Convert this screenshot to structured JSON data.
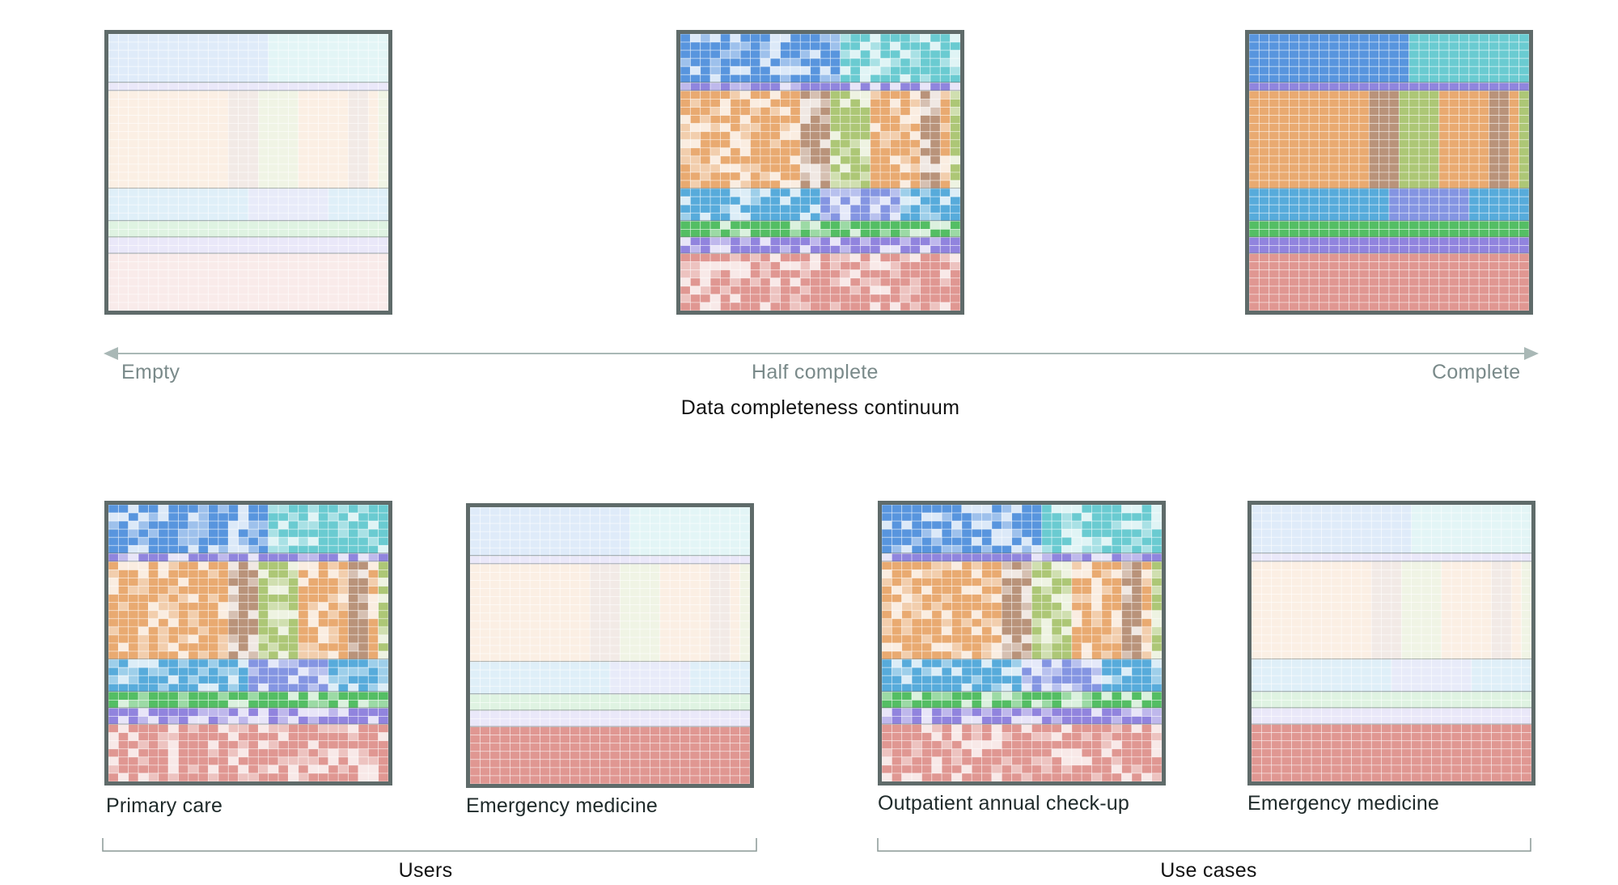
{
  "continuum": {
    "title": "Data completeness continuum",
    "left_label": "Empty",
    "mid_label": "Half complete",
    "right_label": "Complete",
    "panels": [
      {
        "id": "empty",
        "fill": 0.0
      },
      {
        "id": "half",
        "fill": 0.5
      },
      {
        "id": "complete",
        "fill": 1.0
      }
    ]
  },
  "users": {
    "title": "Users",
    "panels": [
      {
        "id": "primary-care",
        "label": "Primary care"
      },
      {
        "id": "emergency-medicine-users",
        "label": "Emergency medicine"
      }
    ]
  },
  "use_cases": {
    "title": "Use cases",
    "panels": [
      {
        "id": "outpatient-check-up",
        "label": "Outpatient annual check-up"
      },
      {
        "id": "emergency-medicine-cases",
        "label": "Emergency medicine"
      }
    ]
  },
  "colors": {
    "frame": "#5f6b6a",
    "axis": "#a9b8b6",
    "blue": "#4f8fdc",
    "teal": "#62c8cf",
    "purple": "#8a7fdc",
    "orange": "#e8a56a",
    "brown": "#b58d73",
    "olive": "#a9c46f",
    "cyan": "#4ea7d9",
    "periwinkle": "#7d8fe0",
    "green": "#4bbb5c",
    "violet": "#8b7ddc",
    "rose": "#de918c"
  }
}
